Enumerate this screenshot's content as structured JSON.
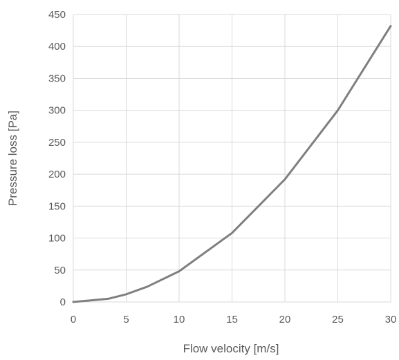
{
  "chart_data": {
    "type": "line",
    "xlabel": "Flow velocity [m/s]",
    "ylabel": "Pressure loss [Pa]",
    "xlim": [
      0,
      30
    ],
    "ylim": [
      0,
      450
    ],
    "xticks": [
      0,
      5,
      10,
      15,
      20,
      25,
      30
    ],
    "yticks": [
      0,
      50,
      100,
      150,
      200,
      250,
      300,
      350,
      400,
      450
    ],
    "grid": true,
    "legend": "none",
    "series": [
      {
        "color": "#7f7f7f",
        "x": [
          0,
          3.3,
          5,
          7,
          10,
          15,
          20,
          25,
          30
        ],
        "y": [
          0,
          5,
          12,
          24,
          48,
          108,
          192,
          300,
          432
        ]
      }
    ]
  }
}
